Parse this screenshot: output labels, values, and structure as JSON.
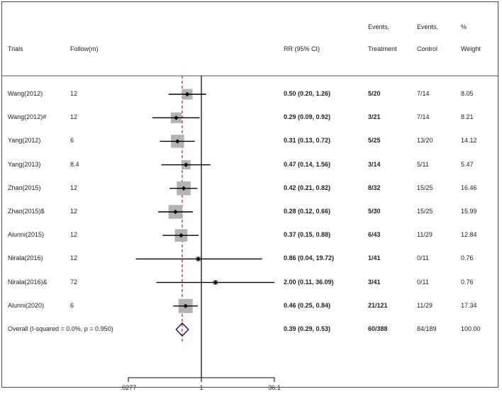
{
  "headers": {
    "trials": "Trials",
    "follow": "Follow(m)",
    "rr": "RR (95% CI)",
    "events_t_1": "Events,",
    "events_t_2": "Treatment",
    "events_c_1": "Events,",
    "events_c_2": "Control",
    "weight_1": "%",
    "weight_2": "Weight"
  },
  "chart_data": {
    "type": "forest",
    "scale": "log",
    "x_ticks": [
      {
        "value": 0.0277,
        "label": ".0277"
      },
      {
        "value": 1,
        "label": "1"
      },
      {
        "value": 36.1,
        "label": "36.1"
      }
    ],
    "null_line": 1,
    "overall_line": 0.39,
    "rows": [
      {
        "trial": "Wang(2012)",
        "follow": "12",
        "rr": 0.5,
        "lo": 0.2,
        "hi": 1.26,
        "rr_text": "0.50 (0.20, 1.26)",
        "ev_t": "5/20",
        "ev_c": "7/14",
        "weight": "8.05",
        "w": 8.05
      },
      {
        "trial": "Wang(2012)#",
        "follow": "12",
        "rr": 0.29,
        "lo": 0.09,
        "hi": 0.92,
        "rr_text": "0.29 (0.09, 0.92)",
        "ev_t": "3/21",
        "ev_c": "7/14",
        "weight": "8.21",
        "w": 8.21
      },
      {
        "trial": "Yang(2012)",
        "follow": "6",
        "rr": 0.31,
        "lo": 0.13,
        "hi": 0.72,
        "rr_text": "0.31 (0.13, 0.72)",
        "ev_t": "5/25",
        "ev_c": "13/20",
        "weight": "14.12",
        "w": 14.12
      },
      {
        "trial": "Yang(2013)",
        "follow": "8.4",
        "rr": 0.47,
        "lo": 0.14,
        "hi": 1.56,
        "rr_text": "0.47 (0.14, 1.56)",
        "ev_t": "3/14",
        "ev_c": "5/11",
        "weight": "5.47",
        "w": 5.47
      },
      {
        "trial": "Zhao(2015)",
        "follow": "12",
        "rr": 0.42,
        "lo": 0.21,
        "hi": 0.82,
        "rr_text": "0.42 (0.21, 0.82)",
        "ev_t": "8/32",
        "ev_c": "15/25",
        "weight": "16.46",
        "w": 16.46
      },
      {
        "trial": "Zhao(2015)$",
        "follow": "12",
        "rr": 0.28,
        "lo": 0.12,
        "hi": 0.66,
        "rr_text": "0.28 (0.12, 0.66)",
        "ev_t": "5/30",
        "ev_c": "15/25",
        "weight": "15.99",
        "w": 15.99
      },
      {
        "trial": "Alunni(2015)",
        "follow": "12",
        "rr": 0.37,
        "lo": 0.15,
        "hi": 0.88,
        "rr_text": "0.37 (0.15, 0.88)",
        "ev_t": "6/43",
        "ev_c": "11/29",
        "weight": "12.84",
        "w": 12.84
      },
      {
        "trial": "Nirala(2016)",
        "follow": "12",
        "rr": 0.86,
        "lo": 0.04,
        "hi": 19.72,
        "rr_text": "0.86 (0.04, 19.72)",
        "ev_t": "1/41",
        "ev_c": "0/11",
        "weight": "0.76",
        "w": 0.76
      },
      {
        "trial": "Nirala(2016)&",
        "follow": "72",
        "rr": 2.0,
        "lo": 0.11,
        "hi": 36.09,
        "rr_text": "2.00 (0.11, 36.09)",
        "ev_t": "3/41",
        "ev_c": "0/11",
        "weight": "0.76",
        "w": 0.76
      },
      {
        "trial": "Alunni(2020)",
        "follow": "6",
        "rr": 0.46,
        "lo": 0.25,
        "hi": 0.84,
        "rr_text": "0.46 (0.25, 0.84)",
        "ev_t": "21/121",
        "ev_c": "11/29",
        "weight": "17.34",
        "w": 17.34
      }
    ],
    "overall": {
      "label": "Overall  (I-squared = 0.0%, p = 0.950)",
      "rr": 0.39,
      "lo": 0.29,
      "hi": 0.53,
      "rr_text": "0.39 (0.29, 0.53)",
      "ev_t": "60/388",
      "ev_c": "84/189",
      "weight": "100.00"
    },
    "colors": {
      "box": "#b3b3b3",
      "overall_line": "#b22222",
      "diamond": "#2a1a6b",
      "line": "#000000"
    }
  }
}
